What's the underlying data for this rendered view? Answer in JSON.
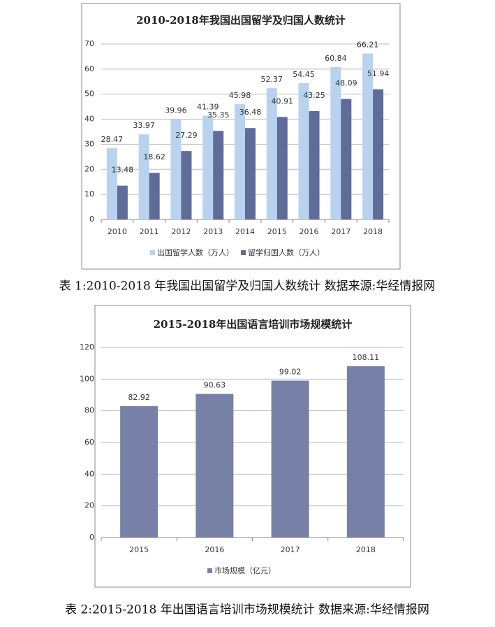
{
  "chart_data": [
    {
      "type": "bar",
      "title": "2010-2018年我国出国留学及归国人数统计",
      "categories": [
        "2010",
        "2011",
        "2012",
        "2013",
        "2014",
        "2015",
        "2016",
        "2017",
        "2018"
      ],
      "series": [
        {
          "name": "出国留学人数（万人）",
          "color": "#b9d2ef",
          "values": [
            28.47,
            33.97,
            39.96,
            41.39,
            45.98,
            52.37,
            54.45,
            60.84,
            66.21
          ]
        },
        {
          "name": "留学归国人数（万人）",
          "color": "#5f6c99",
          "values": [
            13.48,
            18.62,
            27.29,
            35.35,
            36.48,
            40.91,
            43.25,
            48.09,
            51.94
          ]
        }
      ],
      "ylim": [
        0,
        70
      ],
      "yticks": [
        0,
        10,
        20,
        30,
        40,
        50,
        60,
        70
      ],
      "grid": true,
      "legend": "bottom"
    },
    {
      "type": "bar",
      "title": "2015-2018年出国语言培训市场规模统计",
      "categories": [
        "2015",
        "2016",
        "2017",
        "2018"
      ],
      "series": [
        {
          "name": "市场规模（亿元）",
          "color": "#7780a6",
          "values": [
            82.92,
            90.63,
            99.02,
            108.11
          ]
        }
      ],
      "ylim": [
        0,
        120
      ],
      "yticks": [
        0,
        20,
        40,
        60,
        80,
        100,
        120
      ],
      "grid": true,
      "legend": "bottom"
    }
  ],
  "captions": [
    "表 1:2010-2018 年我国出国留学及归国人数统计 数据来源:华经情报网",
    "表 2:2015-2018 年出国语言培训市场规模统计 数据来源:华经情报网"
  ]
}
